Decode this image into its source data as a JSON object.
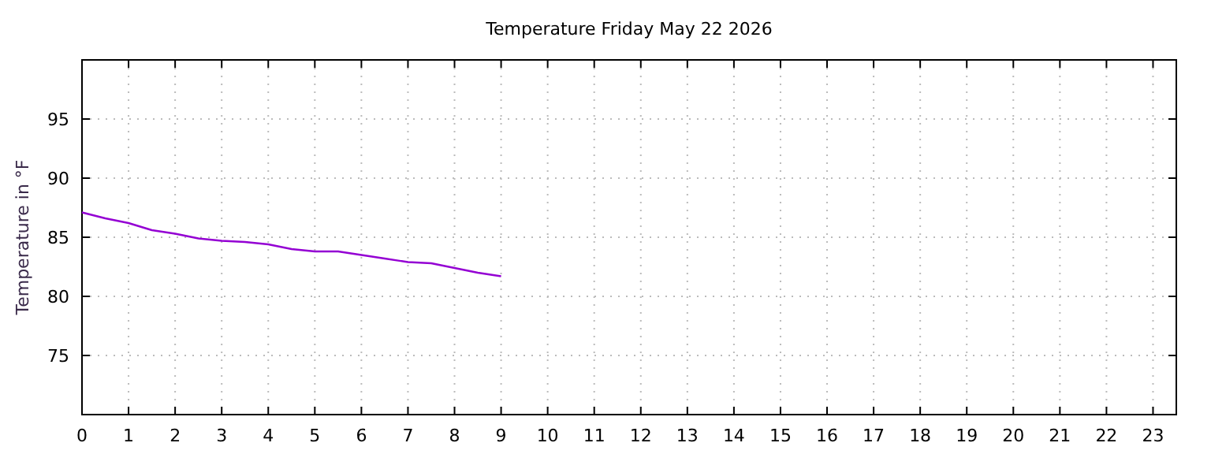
{
  "chart_data": {
    "type": "line",
    "title": "Temperature Friday May 22 2026",
    "ylabel": "Temperature in °F",
    "x": [
      0,
      0.5,
      1,
      1.5,
      2,
      2.5,
      3,
      3.5,
      4,
      4.5,
      5,
      5.5,
      6,
      6.5,
      7,
      7.5,
      8,
      8.5,
      9
    ],
    "series": [
      {
        "color": "#9400d3",
        "values": [
          87.1,
          86.6,
          86.2,
          85.6,
          85.3,
          84.9,
          84.7,
          84.6,
          84.4,
          84.0,
          83.8,
          83.8,
          83.5,
          83.2,
          82.9,
          82.8,
          82.4,
          82.0,
          81.7
        ]
      }
    ],
    "xlim": [
      0,
      23.5
    ],
    "xticks": [
      0,
      1,
      2,
      3,
      4,
      5,
      6,
      7,
      8,
      9,
      10,
      11,
      12,
      13,
      14,
      15,
      16,
      17,
      18,
      19,
      20,
      21,
      22,
      23
    ],
    "ylim": [
      70,
      100
    ],
    "yticks": [
      75,
      80,
      85,
      90,
      95
    ],
    "grid": true
  }
}
